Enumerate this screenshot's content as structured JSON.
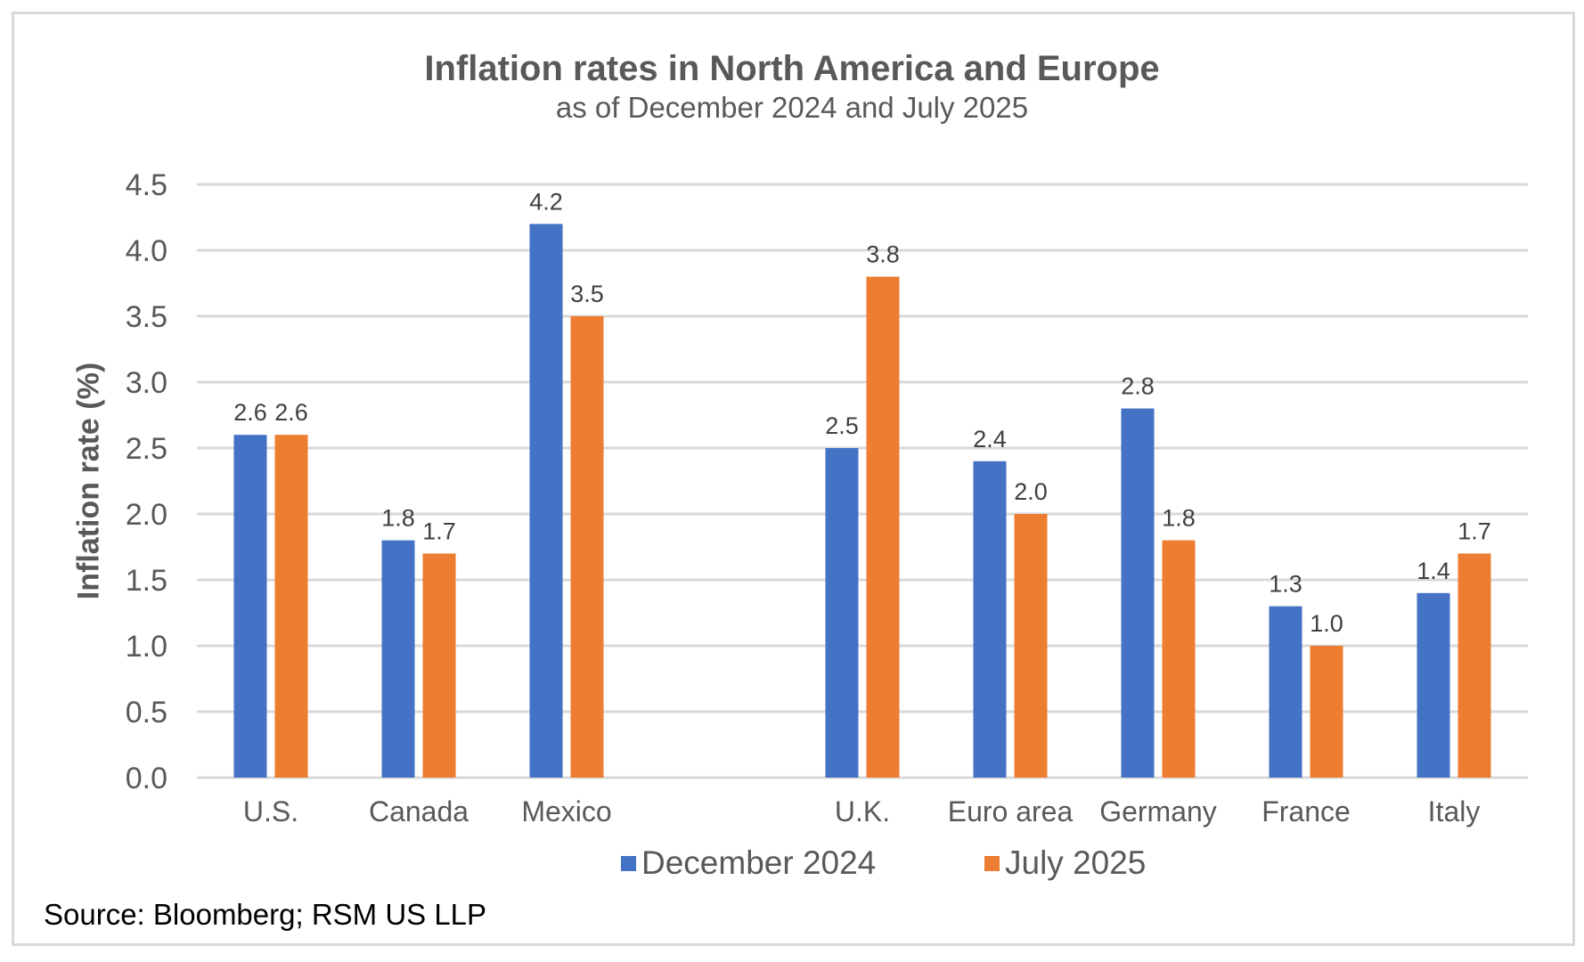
{
  "chart_data": {
    "type": "bar",
    "title": "Inflation rates in North America and Europe",
    "subtitle": "as of December 2024 and July 2025",
    "xlabel": "",
    "ylabel": "Inflation rate (%)",
    "ylim": [
      0,
      4.5
    ],
    "yticks": [
      "0.0",
      "0.5",
      "1.0",
      "1.5",
      "2.0",
      "2.5",
      "3.0",
      "3.5",
      "4.0",
      "4.5"
    ],
    "ytick_values": [
      0,
      0.5,
      1,
      1.5,
      2,
      2.5,
      3,
      3.5,
      4,
      4.5
    ],
    "grid": true,
    "legend_position": "bottom",
    "categories": [
      "U.S.",
      "Canada",
      "Mexico",
      "",
      "U.K.",
      "Euro area",
      "Germany",
      "France",
      "Italy"
    ],
    "series": [
      {
        "name": "December 2024",
        "color": "#4472C4",
        "values": [
          2.6,
          1.8,
          4.2,
          null,
          2.5,
          2.4,
          2.8,
          1.3,
          1.4
        ],
        "labels": [
          "2.6",
          "1.8",
          "4.2",
          "",
          "2.5",
          "2.4",
          "2.8",
          "1.3",
          "1.4"
        ]
      },
      {
        "name": "July 2025",
        "color": "#ED7D31",
        "values": [
          2.6,
          1.7,
          3.5,
          null,
          3.8,
          2.0,
          1.8,
          1.0,
          1.7
        ],
        "labels": [
          "2.6",
          "1.7",
          "3.5",
          "",
          "3.8",
          "2.0",
          "1.8",
          "1.0",
          "1.7"
        ]
      }
    ],
    "source": "Source: Bloomberg; RSM US LLP"
  }
}
